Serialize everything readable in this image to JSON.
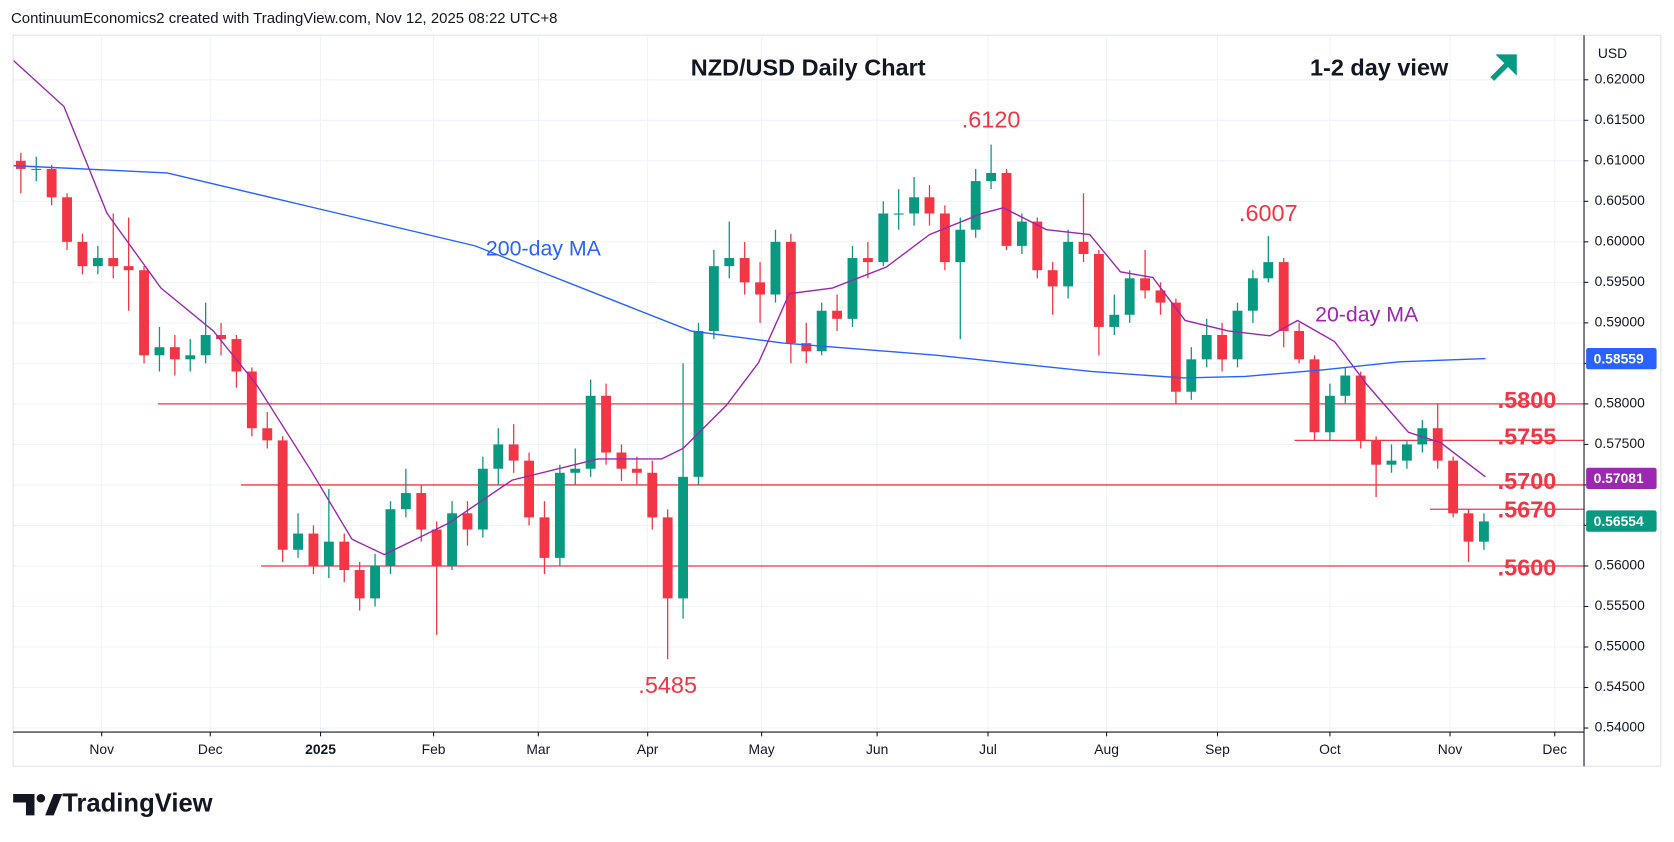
{
  "chart_data": {
    "type": "candlestick",
    "header": "ContinuumEconomics2 created with TradingView.com, Nov 12, 2025 08:22 UTC+8",
    "title": "NZD/USD Daily Chart",
    "subtitle": "1-2 day view",
    "currency": "USD",
    "branding": "TradingView",
    "up_color": "#089981",
    "down_color": "#f23645",
    "xlim": [
      0,
      102
    ],
    "xticks": [
      {
        "value": 5.75,
        "label": "Nov"
      },
      {
        "value": 12.8,
        "label": "Dec"
      },
      {
        "value": 19.96,
        "label": "2025"
      },
      {
        "value": 27.3,
        "label": "Feb"
      },
      {
        "value": 34.1,
        "label": "Mar"
      },
      {
        "value": 41.2,
        "label": "Apr"
      },
      {
        "value": 48.6,
        "label": "May"
      },
      {
        "value": 56.1,
        "label": "Jun"
      },
      {
        "value": 63.3,
        "label": "Jul"
      },
      {
        "value": 71.0,
        "label": "Aug"
      },
      {
        "value": 78.2,
        "label": "Sep"
      },
      {
        "value": 85.5,
        "label": "Oct"
      },
      {
        "value": 93.3,
        "label": "Nov"
      },
      {
        "value": 100.1,
        "label": "Dec"
      }
    ],
    "ylim": [
      0.5395,
      0.6255
    ],
    "yticks": [
      {
        "value": 0.54,
        "label": "0.54000"
      },
      {
        "value": 0.545,
        "label": "0.54500"
      },
      {
        "value": 0.55,
        "label": "0.55000"
      },
      {
        "value": 0.555,
        "label": "0.55500"
      },
      {
        "value": 0.56,
        "label": "0.56000"
      },
      {
        "value": 0.565,
        "label": "0.56500"
      },
      {
        "value": 0.57,
        "label": "0.57000"
      },
      {
        "value": 0.575,
        "label": "0.57500"
      },
      {
        "value": 0.58,
        "label": "0.58000"
      },
      {
        "value": 0.585,
        "label": "0.58500"
      },
      {
        "value": 0.59,
        "label": "0.59000"
      },
      {
        "value": 0.595,
        "label": "0.59500"
      },
      {
        "value": 0.6,
        "label": "0.60000"
      },
      {
        "value": 0.605,
        "label": "0.60500"
      },
      {
        "value": 0.61,
        "label": "0.61000"
      },
      {
        "value": 0.615,
        "label": "0.61500"
      },
      {
        "value": 0.62,
        "label": "0.62000"
      }
    ],
    "grid": true,
    "open": [
      0.61,
      0.609,
      0.609,
      0.6055,
      0.6,
      0.597,
      0.598,
      0.597,
      0.5965,
      0.586,
      0.587,
      0.5855,
      0.586,
      0.5885,
      0.588,
      0.584,
      0.577,
      0.5755,
      0.562,
      0.564,
      0.56,
      0.563,
      0.5595,
      0.556,
      0.56,
      0.567,
      0.569,
      0.5645,
      0.56,
      0.5665,
      0.5645,
      0.572,
      0.575,
      0.573,
      0.566,
      0.561,
      0.5715,
      0.572,
      0.581,
      0.574,
      0.572,
      0.5715,
      0.566,
      0.556,
      0.571,
      0.589,
      0.597,
      0.598,
      0.595,
      0.5935,
      0.6,
      0.5875,
      0.5865,
      0.5915,
      0.5905,
      0.598,
      0.5975,
      0.6035,
      0.6035,
      0.6055,
      0.6035,
      0.5975,
      0.6015,
      0.6075,
      0.6085,
      0.5995,
      0.6025,
      0.5965,
      0.5945,
      0.6,
      0.5985,
      0.5895,
      0.591,
      0.5955,
      0.594,
      0.5925,
      0.5815,
      0.5855,
      0.5885,
      0.5855,
      0.5915,
      0.5955,
      0.5975,
      0.589,
      0.5855,
      0.5765,
      0.581,
      0.5835,
      0.5755,
      0.5725,
      0.573,
      0.575,
      0.577,
      0.573,
      0.5665,
      0.563
    ],
    "high": [
      0.611,
      0.6105,
      0.6095,
      0.606,
      0.601,
      0.5995,
      0.6035,
      0.603,
      0.597,
      0.5895,
      0.5885,
      0.588,
      0.5925,
      0.59,
      0.5885,
      0.5845,
      0.579,
      0.576,
      0.5665,
      0.565,
      0.5695,
      0.564,
      0.5605,
      0.5615,
      0.568,
      0.572,
      0.57,
      0.5655,
      0.568,
      0.568,
      0.5735,
      0.577,
      0.5775,
      0.574,
      0.568,
      0.5725,
      0.5745,
      0.583,
      0.5825,
      0.575,
      0.5735,
      0.573,
      0.567,
      0.585,
      0.59,
      0.599,
      0.6025,
      0.6,
      0.5975,
      0.6015,
      0.601,
      0.59,
      0.5925,
      0.5935,
      0.5995,
      0.6,
      0.605,
      0.6065,
      0.608,
      0.607,
      0.6045,
      0.603,
      0.609,
      0.612,
      0.609,
      0.6035,
      0.603,
      0.5975,
      0.6015,
      0.606,
      0.599,
      0.5935,
      0.5965,
      0.599,
      0.595,
      0.593,
      0.587,
      0.5905,
      0.59,
      0.5925,
      0.5965,
      0.6007,
      0.598,
      0.59,
      0.586,
      0.5825,
      0.5845,
      0.584,
      0.576,
      0.575,
      0.5755,
      0.578,
      0.58,
      0.5735,
      0.567,
      0.5665
    ],
    "low": [
      0.606,
      0.6075,
      0.6045,
      0.599,
      0.596,
      0.596,
      0.5955,
      0.5915,
      0.585,
      0.584,
      0.5835,
      0.584,
      0.585,
      0.586,
      0.582,
      0.576,
      0.5745,
      0.5605,
      0.561,
      0.559,
      0.5585,
      0.558,
      0.5545,
      0.555,
      0.559,
      0.566,
      0.563,
      0.5515,
      0.5595,
      0.5625,
      0.5635,
      0.57,
      0.5715,
      0.565,
      0.559,
      0.56,
      0.57,
      0.571,
      0.5725,
      0.5705,
      0.57,
      0.5645,
      0.5485,
      0.5535,
      0.57,
      0.588,
      0.5955,
      0.5935,
      0.59,
      0.5925,
      0.585,
      0.585,
      0.586,
      0.589,
      0.5895,
      0.5955,
      0.597,
      0.6015,
      0.602,
      0.602,
      0.5965,
      0.588,
      0.6005,
      0.6065,
      0.599,
      0.5985,
      0.5955,
      0.591,
      0.593,
      0.5975,
      0.586,
      0.5885,
      0.59,
      0.593,
      0.591,
      0.58,
      0.5805,
      0.5845,
      0.584,
      0.5845,
      0.59,
      0.595,
      0.587,
      0.585,
      0.5755,
      0.5755,
      0.58,
      0.5745,
      0.5685,
      0.5715,
      0.572,
      0.574,
      0.572,
      0.566,
      0.5605,
      0.562
    ],
    "close": [
      0.609,
      0.609,
      0.6055,
      0.6,
      0.597,
      0.598,
      0.597,
      0.5965,
      0.586,
      0.587,
      0.5855,
      0.586,
      0.5885,
      0.588,
      0.584,
      0.577,
      0.5755,
      0.562,
      0.564,
      0.56,
      0.563,
      0.5595,
      0.556,
      0.56,
      0.567,
      0.569,
      0.5645,
      0.56,
      0.5665,
      0.5645,
      0.572,
      0.575,
      0.573,
      0.566,
      0.561,
      0.5715,
      0.572,
      0.581,
      0.574,
      0.572,
      0.5715,
      0.566,
      0.556,
      0.571,
      0.589,
      0.597,
      0.598,
      0.595,
      0.5935,
      0.6,
      0.5875,
      0.5865,
      0.5915,
      0.5905,
      0.598,
      0.5975,
      0.6035,
      0.6035,
      0.6055,
      0.6035,
      0.5975,
      0.6015,
      0.6075,
      0.6085,
      0.5995,
      0.6025,
      0.5965,
      0.5945,
      0.6,
      0.5985,
      0.5895,
      0.591,
      0.5955,
      0.594,
      0.5925,
      0.5815,
      0.5855,
      0.5885,
      0.5855,
      0.5915,
      0.5955,
      0.5975,
      0.589,
      0.5855,
      0.5765,
      0.581,
      0.5835,
      0.5755,
      0.5725,
      0.573,
      0.575,
      0.577,
      0.573,
      0.5665,
      0.563,
      0.5655
    ],
    "series": [
      {
        "name": "200-day MA",
        "color": "#2962ff",
        "x": [
          0,
          10,
          20,
          30,
          40,
          44,
          50,
          60,
          70,
          76,
          80,
          85,
          90,
          95.6
        ],
        "values": [
          0.6094,
          0.6085,
          0.604,
          0.5995,
          0.592,
          0.589,
          0.5875,
          0.586,
          0.584,
          0.5832,
          0.5834,
          0.5842,
          0.5852,
          0.5856
        ]
      },
      {
        "name": "20-day MA",
        "color": "#9c27b0",
        "x": [
          0,
          3.3,
          6.1,
          9.6,
          13.0,
          15.8,
          19.3,
          22.0,
          24.1,
          28.3,
          32.4,
          37.98,
          42.1,
          43.5,
          46.3,
          48.4,
          50.4,
          53.2,
          56.7,
          59.5,
          62.9,
          64.3,
          67.1,
          69.9,
          71.9,
          74.0,
          76.1,
          78.9,
          81.6,
          83.4,
          85.8,
          87.9,
          90.6,
          92.7,
          95.6
        ],
        "values": [
          0.6224,
          0.6167,
          0.6035,
          0.5943,
          0.589,
          0.5824,
          0.5719,
          0.5633,
          0.5614,
          0.5653,
          0.5706,
          0.5732,
          0.5732,
          0.5745,
          0.5798,
          0.5851,
          0.5936,
          0.5943,
          0.5969,
          0.6009,
          0.6035,
          0.6042,
          0.6015,
          0.6009,
          0.5963,
          0.5956,
          0.5903,
          0.589,
          0.5884,
          0.5903,
          0.5877,
          0.5824,
          0.5765,
          0.5752,
          0.571
        ]
      }
    ],
    "levels": [
      {
        "value": 0.58,
        "label": ".5800"
      },
      {
        "value": 0.5755,
        "label": ".5755"
      },
      {
        "value": 0.57,
        "label": ".5700"
      },
      {
        "value": 0.567,
        "label": ".5670"
      },
      {
        "value": 0.56,
        "label": ".5600"
      }
    ],
    "level_color": "#f23645",
    "annotations": [
      {
        "value": 0.612,
        "label": ".6120"
      },
      {
        "value": 0.6007,
        "label": ".6007"
      },
      {
        "value": 0.5485,
        "label": ".5485"
      }
    ],
    "price_tags": [
      {
        "value": 0.58559,
        "label": "0.58559",
        "color": "#2962ff"
      },
      {
        "value": 0.57081,
        "label": "0.57081",
        "color": "#9c27b0"
      },
      {
        "value": 0.56554,
        "label": "0.56554",
        "color": "#089981"
      }
    ]
  }
}
